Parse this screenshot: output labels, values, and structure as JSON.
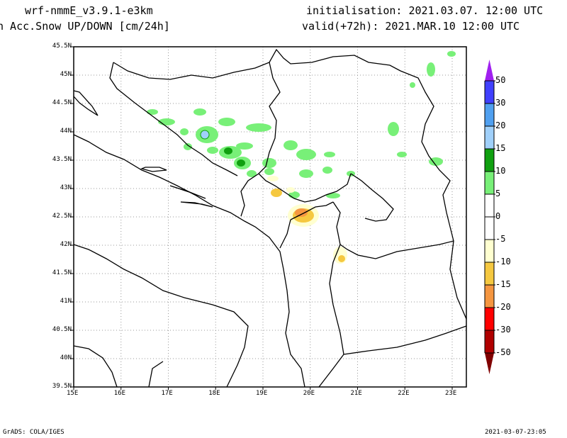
{
  "header": {
    "model": "wrf-nmmE_v3.9.1-e3km",
    "field": "n Acc.Snow UP/DOWN [cm/24h]",
    "init": "initialisation: 2021.03.07.  12:00 UTC",
    "valid": "valid(+72h): 2021.MAR.10 12:00 UTC"
  },
  "map": {
    "lat_labels": [
      "45.5N",
      "45N",
      "44.5N",
      "44N",
      "43.5N",
      "43N",
      "42.5N",
      "42N",
      "41.5N",
      "41N",
      "40.5N",
      "40N",
      "39.5N"
    ],
    "lon_labels": [
      "15E",
      "16E",
      "17E",
      "18E",
      "19E",
      "20E",
      "21E",
      "22E",
      "23E"
    ]
  },
  "colorbar": {
    "labels": [
      "50",
      "30",
      "20",
      "15",
      "10",
      "5",
      "0",
      "-5",
      "-10",
      "-15",
      "-20",
      "-30",
      "-50"
    ],
    "colors": [
      "#4040ff",
      "#50a0f0",
      "#a0d0fa",
      "#10a010",
      "#78f078",
      "#ffffff",
      "#ffffff",
      "#ffffd0",
      "#f5c840",
      "#f59640",
      "#ff0000",
      "#b00000"
    ],
    "top_color": "#a020f0",
    "bottom_color": "#800000"
  },
  "footer": {
    "left": "GrADS: COLA/IGES",
    "right": "2021-03-07-23:05"
  }
}
